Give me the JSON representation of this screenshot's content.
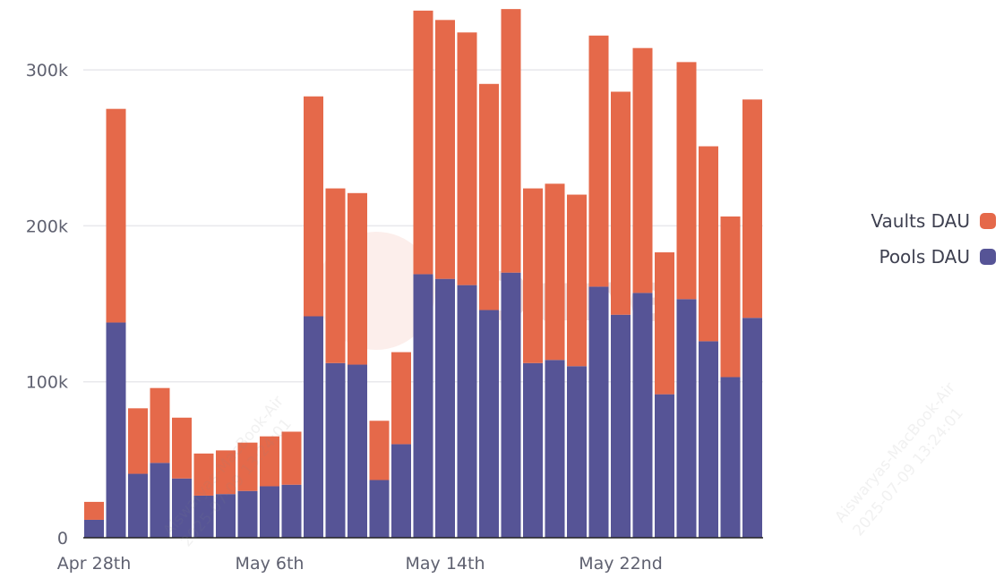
{
  "chart_data": {
    "type": "bar",
    "stacked": true,
    "title": "",
    "xlabel": "",
    "ylabel": "",
    "ylim": [
      0,
      340000
    ],
    "yticks": [
      0,
      100000,
      200000,
      300000
    ],
    "ytick_labels": [
      "0",
      "100k",
      "200k",
      "300k"
    ],
    "grid": true,
    "legend_position": "right",
    "categories": [
      "Apr 28",
      "Apr 29",
      "Apr 30",
      "May 1",
      "May 2",
      "May 3",
      "May 4",
      "May 5",
      "May 6",
      "May 7",
      "May 8",
      "May 9",
      "May 10",
      "May 11",
      "May 12",
      "May 13",
      "May 14",
      "May 15",
      "May 16",
      "May 17",
      "May 18",
      "May 19",
      "May 20",
      "May 21",
      "May 22",
      "May 23",
      "May 24",
      "May 25",
      "May 26",
      "May 27",
      "May 28"
    ],
    "xtick_labels": [
      {
        "category": "Apr 28",
        "label": "Apr 28th"
      },
      {
        "category": "May 6",
        "label": "May 6th"
      },
      {
        "category": "May 14",
        "label": "May 14th"
      },
      {
        "category": "May 22",
        "label": "May 22nd"
      }
    ],
    "series": [
      {
        "name": "Pools DAU",
        "color": "#565496",
        "values": [
          11500,
          138000,
          41000,
          48000,
          38000,
          27000,
          28000,
          30000,
          33000,
          34000,
          142000,
          112000,
          111000,
          37000,
          60000,
          169000,
          166000,
          162000,
          146000,
          170000,
          112000,
          114000,
          110000,
          161000,
          143000,
          157000,
          92000,
          153000,
          126000,
          103000,
          141000
        ]
      },
      {
        "name": "Vaults DAU",
        "color": "#e5694a",
        "values": [
          11500,
          137000,
          42000,
          48000,
          39000,
          27000,
          28000,
          31000,
          32000,
          34000,
          141000,
          112000,
          110000,
          38000,
          59000,
          169000,
          166000,
          162000,
          145000,
          169000,
          112000,
          113000,
          110000,
          161000,
          143000,
          157000,
          91000,
          152000,
          125000,
          103000,
          140000
        ]
      }
    ]
  },
  "legend": [
    {
      "label": "Vaults DAU",
      "color": "#e5694a"
    },
    {
      "label": "Pools DAU",
      "color": "#565496"
    }
  ],
  "watermark": {
    "logo": "Dune",
    "stamp_line1": "Aiswaryas-MacBook-Air",
    "stamp_line2": "2025-07-09 13:24:01"
  }
}
